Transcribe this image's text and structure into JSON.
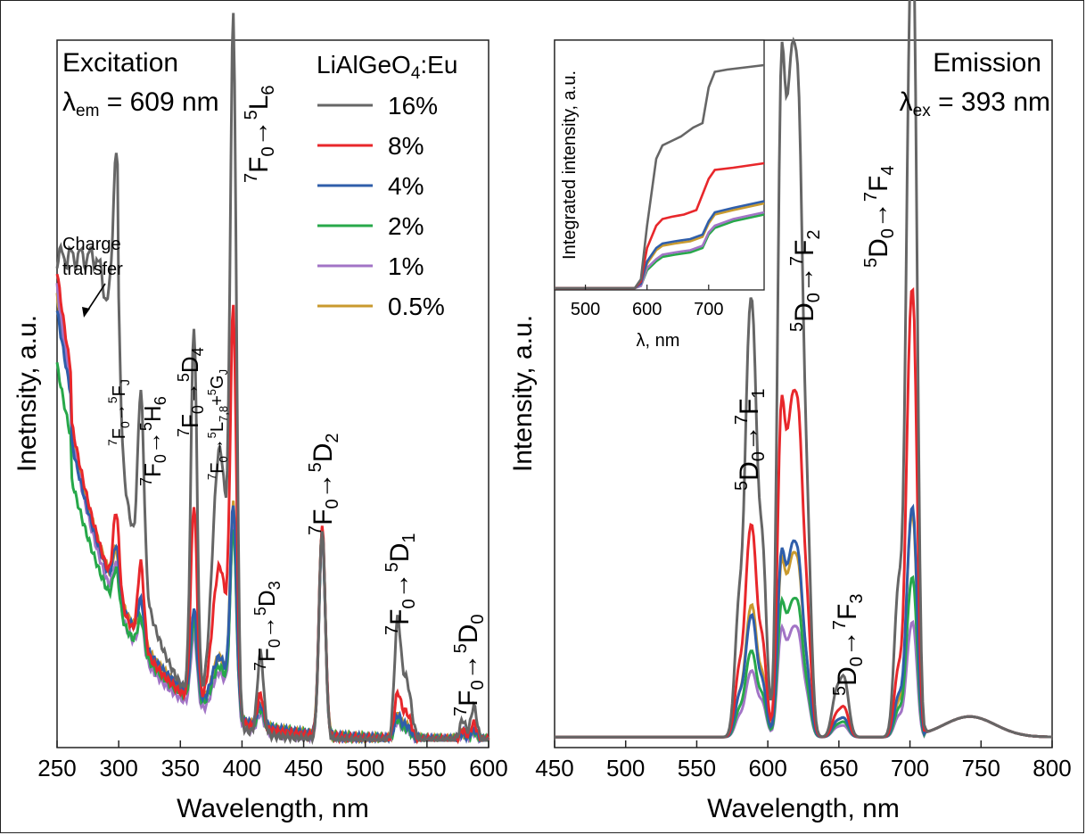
{
  "chart_data": [
    {
      "type": "line",
      "panel": "excitation",
      "xlabel": "Wavelength, nm",
      "ylabel": "Inetnsity, a.u.",
      "xlim": [
        250,
        600
      ],
      "ylim": [
        0,
        1.0
      ],
      "x_ticks": [
        "250",
        "300",
        "350",
        "400",
        "450",
        "500",
        "550",
        "600"
      ],
      "y_ticks_labeled": false,
      "header": {
        "title": "Excitation",
        "lambda_sym": "λ",
        "lambda_sub": "em",
        "lambda_value": " = 609 nm"
      },
      "legend": {
        "title_pre": "LiAlGeO",
        "title_sub": "4",
        "title_post": ":Eu",
        "position": "top-right"
      },
      "charge_transfer": [
        "Charge",
        "transfer"
      ],
      "transition_labels": [
        {
          "pre": "7",
          "a": "F",
          "asub": "0",
          "arrow": "→",
          "post": "5",
          "b": "L",
          "bsub": "6"
        },
        {
          "pre": "7",
          "a": "F",
          "asub": "0",
          "arrow": "→",
          "post": "5",
          "b": "F",
          "bsub": "J"
        },
        {
          "pre": "7",
          "a": "F",
          "asub": "0",
          "arrow": "→",
          "post": "5",
          "b": "H",
          "bsub": "6"
        },
        {
          "pre": "7",
          "a": "F",
          "asub": "0",
          "arrow": "→",
          "post": "5",
          "b": "D",
          "bsub": "4"
        },
        {
          "pre": "7",
          "a": "F",
          "asub": "0",
          "arrow": "→",
          "post": "5",
          "b": "L",
          "bsub": "7,8",
          "extra_plus": "+",
          "extra_pre": "5",
          "extra_b": "G",
          "extra_sub": "J"
        },
        {
          "pre": "7",
          "a": "F",
          "asub": "0",
          "arrow": "→",
          "post": "5",
          "b": "D",
          "bsub": "3"
        },
        {
          "pre": "7",
          "a": "F",
          "asub": "0",
          "arrow": "→",
          "post": "5",
          "b": "D",
          "bsub": "2"
        },
        {
          "pre": "7",
          "a": "F",
          "asub": "0",
          "arrow": "→",
          "post": "5",
          "b": "D",
          "bsub": "1"
        },
        {
          "pre": "7",
          "a": "F",
          "asub": "0",
          "arrow": "→",
          "post": "5",
          "b": "D",
          "bsub": "0"
        }
      ],
      "peaks_nm": [
        298,
        318,
        361,
        382,
        393,
        415,
        465,
        526,
        533,
        579,
        588
      ],
      "series": [
        {
          "name": "16%",
          "color": "#666666",
          "baseline": 0.74,
          "decay": 0.72,
          "peaks": [
            0.28,
            0.27,
            0.55,
            0.4,
            0.97,
            0.12,
            0.31,
            0.16,
            0.09,
            0.03,
            0.05
          ]
        },
        {
          "name": "8%",
          "color": "#e8272b",
          "baseline": 0.6,
          "decay": 0.6,
          "peaks": [
            0.12,
            0.12,
            0.29,
            0.22,
            0.57,
            0.05,
            0.31,
            0.06,
            0.04,
            0.015,
            0.025
          ]
        },
        {
          "name": "4%",
          "color": "#2f5eaa",
          "baseline": 0.55,
          "decay": 0.7,
          "peaks": [
            0.07,
            0.06,
            0.13,
            0.08,
            0.3,
            0.03,
            0.3,
            0.03,
            0.02,
            0.01,
            0.015
          ]
        },
        {
          "name": "2%",
          "color": "#27a84a",
          "baseline": 0.48,
          "decay": 0.72,
          "peaks": [
            0.06,
            0.05,
            0.12,
            0.07,
            0.27,
            0.025,
            0.3,
            0.025,
            0.015,
            0.01,
            0.012
          ]
        },
        {
          "name": "1%",
          "color": "#a274c6",
          "baseline": 0.58,
          "decay": 0.55,
          "peaks": [
            0.06,
            0.05,
            0.11,
            0.07,
            0.28,
            0.025,
            0.3,
            0.025,
            0.015,
            0.01,
            0.012
          ]
        },
        {
          "name": "0.5%",
          "color": "#c99a2e",
          "baseline": 0.57,
          "decay": 0.68,
          "peaks": [
            0.06,
            0.06,
            0.12,
            0.08,
            0.3,
            0.03,
            0.3,
            0.03,
            0.02,
            0.01,
            0.015
          ]
        }
      ]
    },
    {
      "type": "line",
      "panel": "emission",
      "xlabel": "Wavelength, nm",
      "ylabel": "Intensity, a.u.",
      "xlim": [
        450,
        800
      ],
      "ylim": [
        0,
        1.0
      ],
      "x_ticks": [
        "450",
        "500",
        "550",
        "600",
        "650",
        "700",
        "750",
        "800"
      ],
      "y_ticks_labeled": false,
      "header": {
        "title": "Emission",
        "lambda_sym": "λ",
        "lambda_sub": "ex",
        "lambda_value": " = 393 nm"
      },
      "transition_labels": [
        {
          "pre": "5",
          "a": "D",
          "asub": "0",
          "arrow": "→",
          "post": "7",
          "b": "F",
          "bsub": "1"
        },
        {
          "pre": "5",
          "a": "D",
          "asub": "0",
          "arrow": "→",
          "post": "7",
          "b": "F",
          "bsub": "2"
        },
        {
          "pre": "5",
          "a": "D",
          "asub": "0",
          "arrow": "→",
          "post": "7",
          "b": "F",
          "bsub": "3"
        },
        {
          "pre": "5",
          "a": "D",
          "asub": "0",
          "arrow": "→",
          "post": "7",
          "b": "F",
          "bsub": "4"
        }
      ],
      "peaks_nm": [
        580,
        586,
        590,
        596,
        609,
        614,
        618,
        622,
        627,
        648,
        654,
        692,
        699,
        703
      ],
      "series": [
        {
          "name": "16%",
          "peaks": [
            0.2,
            0.42,
            0.45,
            0.28,
            0.8,
            0.68,
            0.55,
            0.68,
            0.35,
            0.06,
            0.08,
            0.22,
            0.72,
            0.92
          ]
        },
        {
          "name": "8%",
          "peaks": [
            0.1,
            0.2,
            0.22,
            0.14,
            0.4,
            0.32,
            0.28,
            0.34,
            0.2,
            0.03,
            0.04,
            0.1,
            0.4,
            0.5
          ]
        },
        {
          "name": "4%",
          "peaks": [
            0.06,
            0.11,
            0.13,
            0.08,
            0.22,
            0.18,
            0.16,
            0.19,
            0.1,
            0.02,
            0.025,
            0.06,
            0.2,
            0.26
          ]
        },
        {
          "name": "2%",
          "peaks": [
            0.04,
            0.08,
            0.09,
            0.06,
            0.16,
            0.13,
            0.11,
            0.14,
            0.07,
            0.015,
            0.02,
            0.04,
            0.14,
            0.18
          ]
        },
        {
          "name": "1%",
          "peaks": [
            0.03,
            0.06,
            0.07,
            0.05,
            0.13,
            0.1,
            0.09,
            0.11,
            0.06,
            0.012,
            0.015,
            0.03,
            0.1,
            0.13
          ]
        },
        {
          "name": "0.5%",
          "peaks": [
            0.06,
            0.12,
            0.14,
            0.09,
            0.21,
            0.17,
            0.15,
            0.18,
            0.1,
            0.02,
            0.025,
            0.05,
            0.2,
            0.25
          ]
        }
      ],
      "inset": {
        "xlabel_sym": "λ",
        "xlabel_rest": ", nm",
        "ylabel": "Integrated intensity, a.u.",
        "xlim": [
          450,
          790
        ],
        "x_ticks": [
          "500",
          "600",
          "700"
        ],
        "series": [
          {
            "name": "16%",
            "x": [
              450,
              580,
              590,
              600,
              615,
              625,
              640,
              655,
              665,
              675,
              690,
              700,
              710,
              730,
              760,
              790
            ],
            "y": [
              0.0,
              0.0,
              0.04,
              0.28,
              0.58,
              0.64,
              0.66,
              0.68,
              0.7,
              0.72,
              0.74,
              0.9,
              0.97,
              0.98,
              0.99,
              1.0
            ]
          },
          {
            "name": "8%",
            "x": [
              450,
              580,
              590,
              600,
              615,
              625,
              640,
              660,
              680,
              700,
              710,
              740,
              790
            ],
            "y": [
              0.0,
              0.0,
              0.03,
              0.18,
              0.28,
              0.31,
              0.32,
              0.33,
              0.35,
              0.49,
              0.53,
              0.54,
              0.56
            ]
          },
          {
            "name": "4%",
            "x": [
              450,
              580,
              590,
              600,
              615,
              625,
              645,
              670,
              690,
              700,
              710,
              740,
              790
            ],
            "y": [
              0.0,
              0.0,
              0.02,
              0.12,
              0.18,
              0.2,
              0.21,
              0.22,
              0.24,
              0.3,
              0.34,
              0.36,
              0.39
            ]
          },
          {
            "name": "0.5%",
            "x": [
              450,
              580,
              590,
              600,
              615,
              625,
              645,
              670,
              690,
              700,
              710,
              740,
              790
            ],
            "y": [
              0.0,
              0.0,
              0.02,
              0.11,
              0.17,
              0.19,
              0.2,
              0.21,
              0.23,
              0.29,
              0.33,
              0.35,
              0.38
            ]
          },
          {
            "name": "1%",
            "x": [
              450,
              580,
              590,
              600,
              615,
              625,
              645,
              670,
              690,
              700,
              710,
              740,
              790
            ],
            "y": [
              0.0,
              0.0,
              0.01,
              0.09,
              0.13,
              0.15,
              0.16,
              0.17,
              0.19,
              0.25,
              0.28,
              0.31,
              0.34
            ]
          },
          {
            "name": "2%",
            "x": [
              450,
              580,
              590,
              600,
              615,
              625,
              645,
              670,
              690,
              700,
              710,
              740,
              790
            ],
            "y": [
              0.0,
              0.0,
              0.01,
              0.08,
              0.12,
              0.14,
              0.15,
              0.16,
              0.18,
              0.24,
              0.27,
              0.3,
              0.33
            ]
          }
        ]
      }
    }
  ]
}
